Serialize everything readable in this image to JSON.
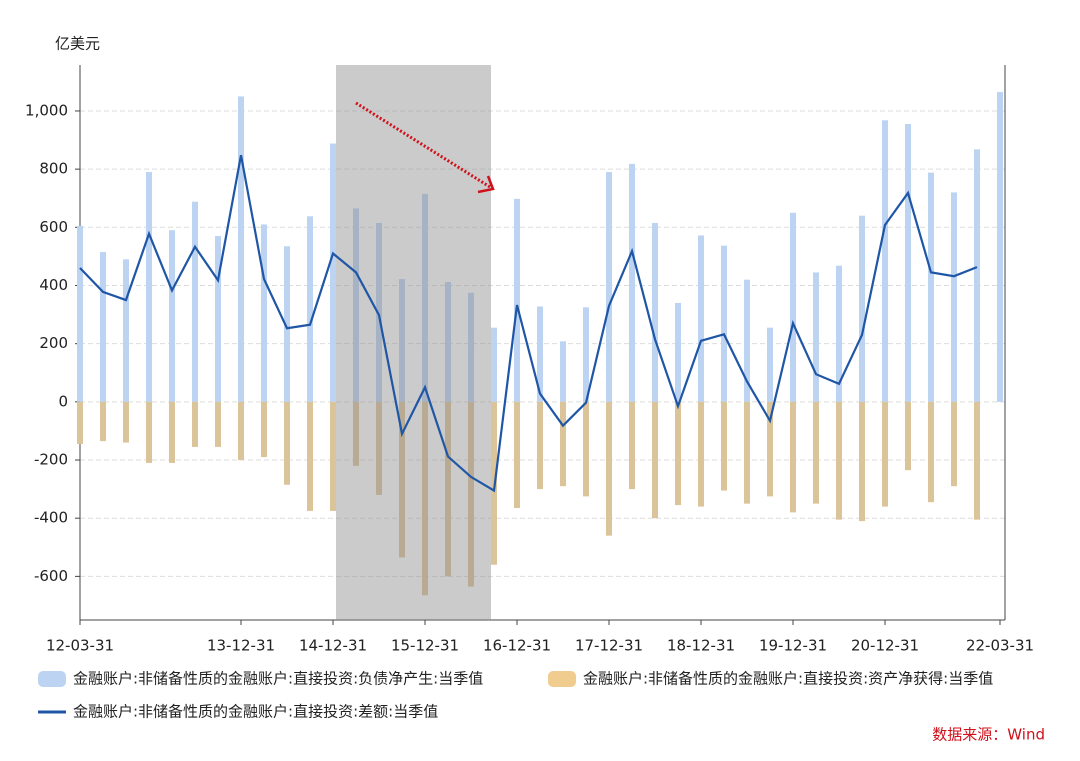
{
  "chart_data": {
    "type": "bar-line",
    "unit_label": "亿美元",
    "source": "数据来源：Wind",
    "categories": [
      "12-03-31",
      null,
      null,
      null,
      null,
      null,
      null,
      "13-12-31",
      null,
      null,
      null,
      "14-12-31",
      null,
      null,
      null,
      "15-12-31",
      null,
      null,
      null,
      "16-12-31",
      null,
      null,
      null,
      "17-12-31",
      null,
      null,
      null,
      "18-12-31",
      null,
      null,
      null,
      "19-12-31",
      null,
      null,
      null,
      "20-12-31",
      null,
      null,
      null,
      null,
      "22-03-31"
    ],
    "series": [
      {
        "name": "金融账户:非储备性质的金融账户:直接投资:负债净产生:当季值",
        "kind": "bar",
        "color": "#bcd4f2",
        "values": [
          605,
          515,
          490,
          790,
          590,
          688,
          570,
          1050,
          610,
          535,
          638,
          888,
          665,
          615,
          422,
          715,
          412,
          375,
          255,
          698,
          328,
          208,
          325,
          790,
          818,
          615,
          340,
          572,
          537,
          420,
          255,
          650,
          445,
          468,
          640,
          968,
          955,
          788,
          720,
          868,
          1065
        ]
      },
      {
        "name": "金融账户:非储备性质的金融账户:直接投资:资产净获得:当季值",
        "kind": "bar",
        "color": "#dcc49a",
        "values": [
          -145,
          -135,
          -140,
          -210,
          -210,
          -155,
          -155,
          -200,
          -190,
          -285,
          -375,
          -375,
          -220,
          -320,
          -535,
          -665,
          -600,
          -635,
          -560,
          -365,
          -300,
          -290,
          -325,
          -460,
          -300,
          -400,
          -355,
          -360,
          -305,
          -350,
          -325,
          -380,
          -350,
          -405,
          -410,
          -360,
          -235,
          -345,
          -290,
          -405,
          null
        ]
      },
      {
        "name": "金融账户:非储备性质的金融账户:直接投资:差额:当季值",
        "kind": "line",
        "color": "#1f56a5",
        "values": [
          460,
          378,
          350,
          578,
          383,
          533,
          418,
          848,
          422,
          253,
          265,
          510,
          445,
          298,
          -110,
          50,
          -188,
          -258,
          -305,
          333,
          28,
          -82,
          -3,
          330,
          518,
          215,
          -15,
          210,
          232,
          70,
          -65,
          270,
          95,
          62,
          230,
          608,
          718,
          445,
          432,
          463,
          null
        ]
      }
    ],
    "ylim": [
      -750,
      1158
    ],
    "yticks": [
      -600,
      -400,
      -200,
      0,
      200,
      400,
      600,
      800,
      {
        "value": 1000,
        "label": "1,000"
      }
    ],
    "grid": true
  }
}
